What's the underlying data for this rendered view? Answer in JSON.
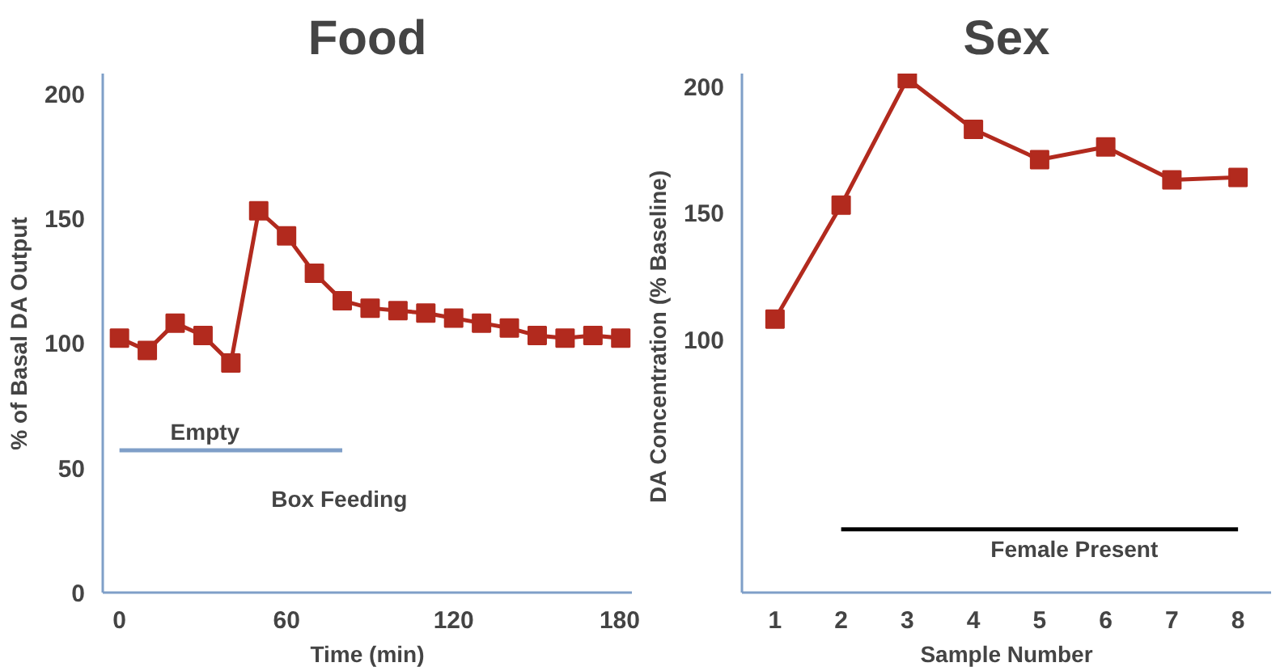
{
  "chart_data": [
    {
      "type": "line",
      "title": "Food",
      "xlabel": "Time (min)",
      "ylabel": "% of Basal DA Output",
      "x": [
        0,
        10,
        20,
        30,
        40,
        50,
        60,
        70,
        80,
        90,
        100,
        110,
        120,
        130,
        140,
        150,
        160,
        170,
        180
      ],
      "series": [
        {
          "color": "#b22a1e",
          "values": [
            102,
            97,
            108,
            103,
            92,
            153,
            143,
            128,
            117,
            114,
            113,
            112,
            110,
            108,
            106,
            103,
            102,
            103,
            102
          ]
        },
        {
          "type": "line",
          "color": "#7f9fc8",
          "x": [
            0,
            80
          ],
          "values": [
            57,
            57
          ],
          "marker": "none"
        }
      ],
      "marker": "square",
      "xlim": [
        -6,
        184
      ],
      "ylim": [
        0,
        208
      ],
      "xticks": [
        0,
        60,
        120,
        180
      ],
      "yticks": [
        0,
        50,
        100,
        150,
        200
      ],
      "grid": false,
      "annotations": [
        "Empty",
        "Box Feeding"
      ]
    },
    {
      "type": "line",
      "title": "Sex",
      "xlabel": "Sample Number",
      "ylabel": "DA Concentration  (% Baseline)",
      "categories": [
        "1",
        "2",
        "3",
        "4",
        "5",
        "6",
        "7",
        "8"
      ],
      "series": [
        {
          "color": "#b22a1e",
          "values": [
            108,
            153,
            203,
            183,
            171,
            176,
            163,
            164
          ]
        },
        {
          "type": "line",
          "color": "#000000",
          "values": [
            null,
            25,
            25,
            25,
            25,
            25,
            25,
            25
          ],
          "marker": "none"
        }
      ],
      "marker": "square",
      "ylim": [
        0,
        205
      ],
      "yticks": [
        100,
        150,
        200
      ],
      "grid": false,
      "annotations": [
        "Female Present"
      ]
    }
  ]
}
